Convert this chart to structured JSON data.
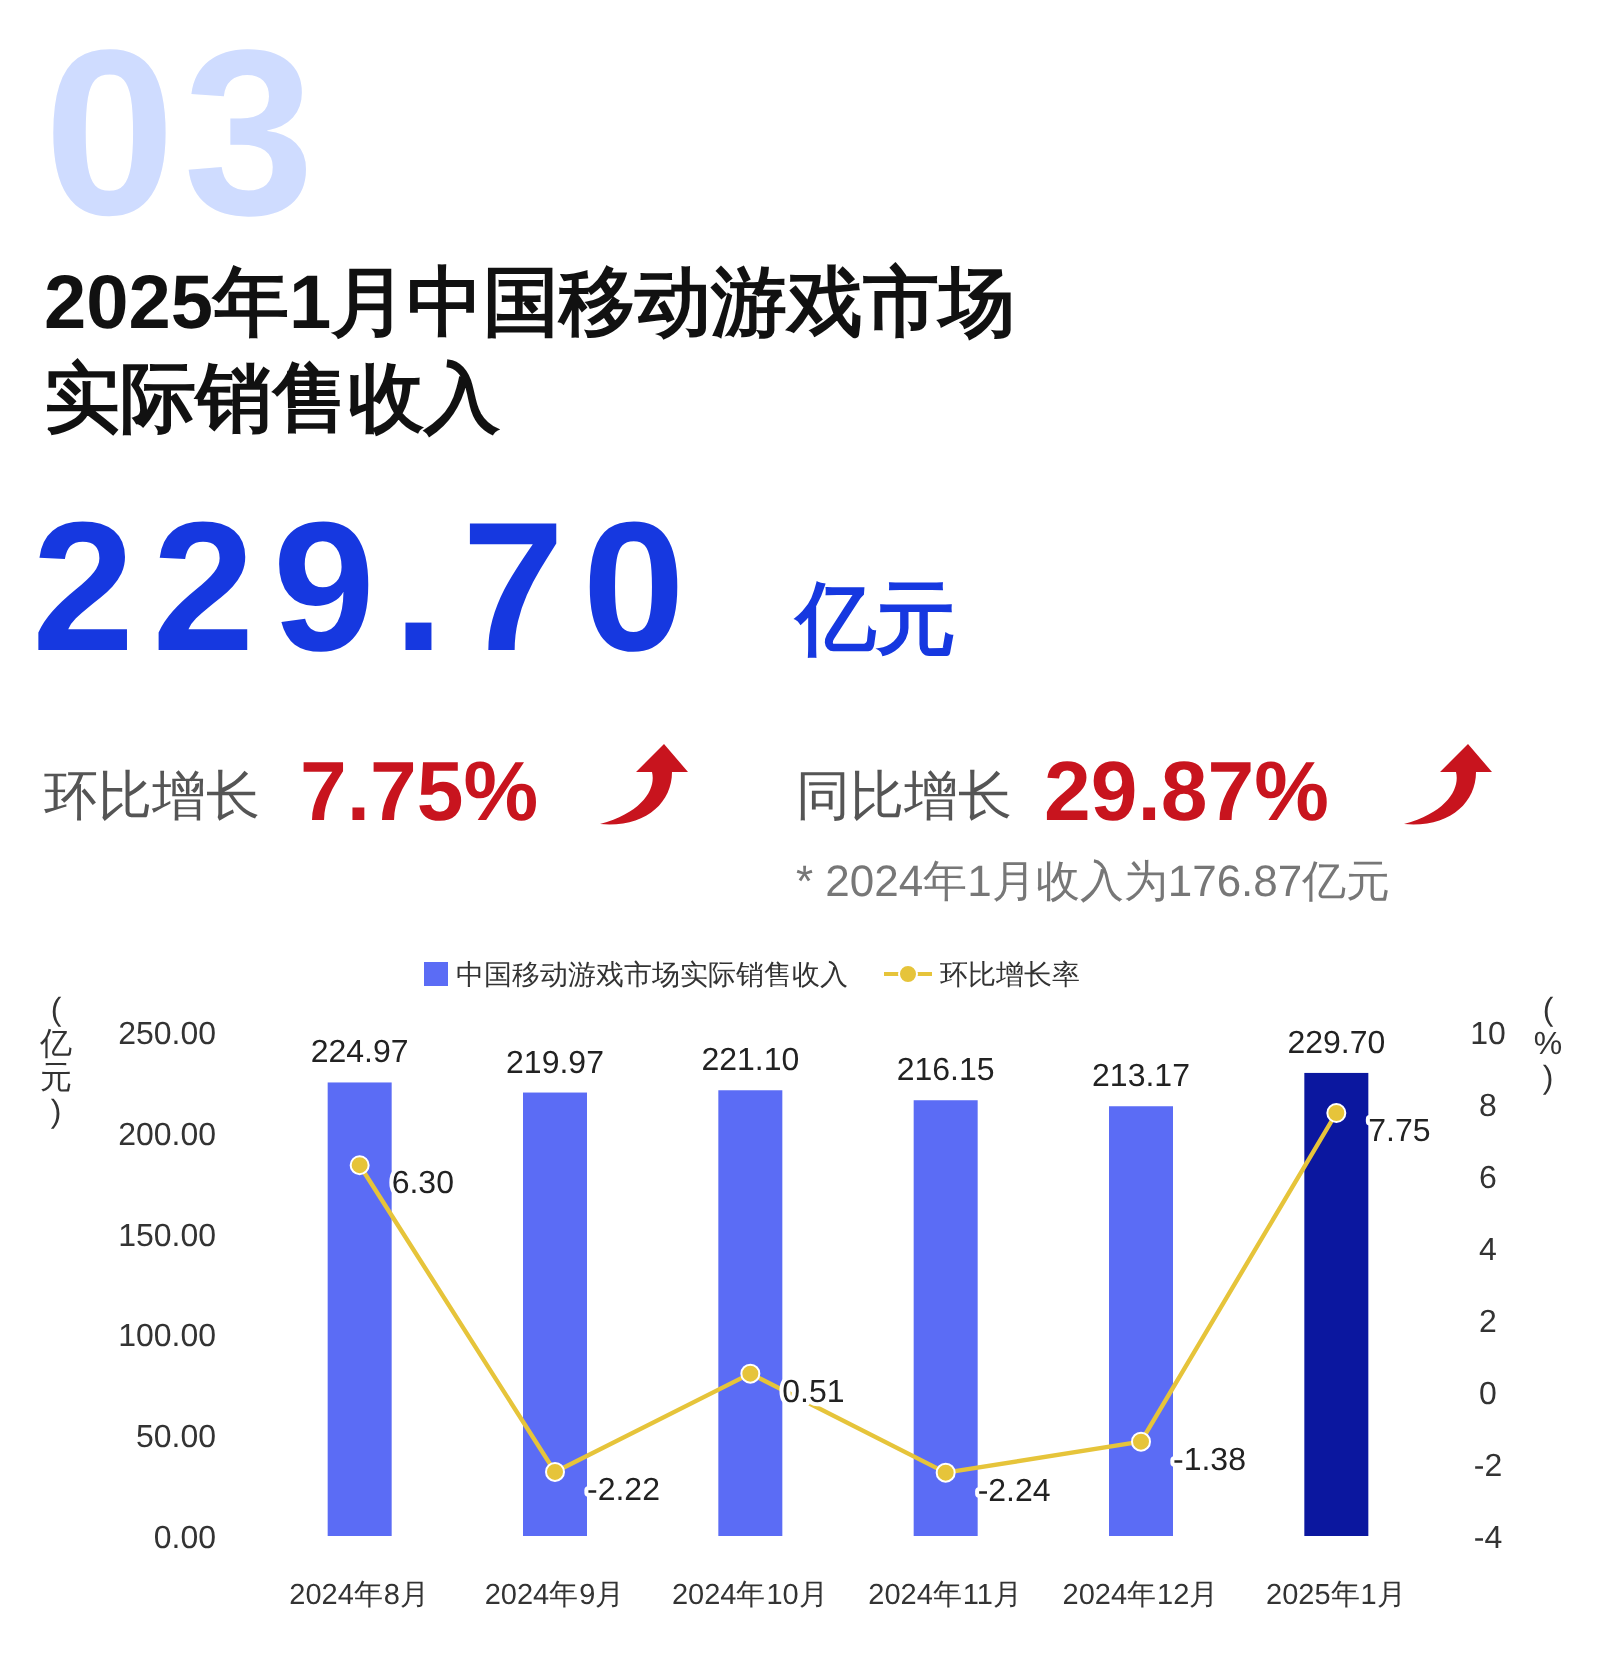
{
  "chart_data": {
    "type": "bar",
    "title": "2025年1月中国移动游戏市场实际销售收入",
    "annotations": [
      "03",
      "229.70",
      "亿元",
      "环比增长",
      "7.75%",
      "同比增长",
      "29.87%",
      "* 2024年1月收入为176.87亿元"
    ],
    "categories": [
      "2024年8月",
      "2024年9月",
      "2024年10月",
      "2024年11月",
      "2024年12月",
      "2025年1月"
    ],
    "series": [
      {
        "name": "中国移动游戏市场实际销售收入",
        "type": "bar",
        "colors": [
          "#5b6cf5",
          "#5b6cf5",
          "#5b6cf5",
          "#5b6cf5",
          "#5b6cf5",
          "#0b179f"
        ],
        "values": [
          224.97,
          219.97,
          221.1,
          216.15,
          213.17,
          229.7
        ],
        "value_labels": [
          "224.97",
          "219.97",
          "221.10",
          "216.15",
          "213.17",
          "229.70"
        ]
      },
      {
        "name": "环比增长率",
        "type": "line",
        "axis": "y2",
        "color": "#e6c43a",
        "marker": "circle",
        "values": [
          6.3,
          -2.22,
          0.51,
          -2.24,
          -1.38,
          7.75
        ],
        "value_labels": [
          "6.30",
          "-2.22",
          "0.51",
          "-2.24",
          "-1.38",
          "7.75"
        ]
      }
    ],
    "ylabel": "(亿元)",
    "y2label": "(%)",
    "ylim": [
      0,
      250
    ],
    "yticks": [
      {
        "value": 0,
        "label": "0.00"
      },
      {
        "value": 50,
        "label": "50.00"
      },
      {
        "value": 100,
        "label": "100.00"
      },
      {
        "value": 150,
        "label": "150.00"
      },
      {
        "value": 200,
        "label": "200.00"
      },
      {
        "value": 250,
        "label": "250.00"
      }
    ],
    "y2lim": [
      -4,
      10
    ],
    "y2ticks": [
      -4,
      -2,
      0,
      2,
      4,
      6,
      8,
      10
    ],
    "legend": "top",
    "grid": false
  }
}
